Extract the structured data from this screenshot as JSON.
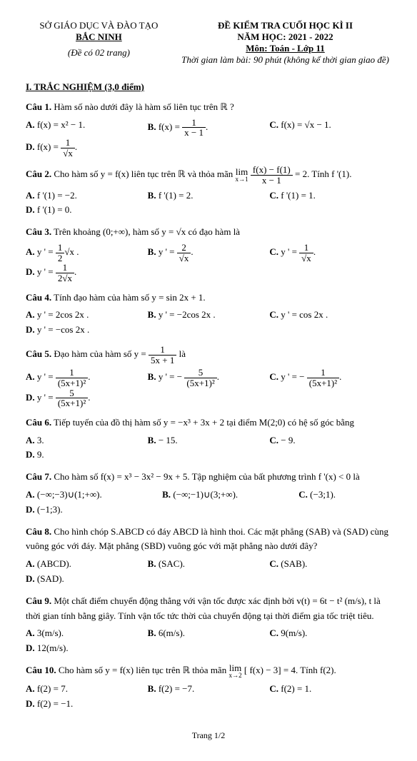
{
  "header": {
    "left_line1": "SỞ GIÁO DỤC VÀ ĐÀO TẠO",
    "left_line2": "BẮC NINH",
    "left_note": "(Đề có 02 trang)",
    "right_line1": "ĐỀ KIỂM TRA CUỐI HỌC KÌ II",
    "right_line2": "NĂM HỌC: 2021 - 2022",
    "right_line3": "Môn: Toán - Lớp 11",
    "right_note": "Thời gian làm bài: 90 phút (không kể thời gian giao đề)"
  },
  "section1": "I. TRẮC NGHIỆM (3,0 điểm)",
  "q1": {
    "label": "Câu 1.",
    "text": " Hàm số nào dưới đây là hàm số liên tục trên ℝ ?",
    "a": "f(x) = x² − 1.",
    "b_pre": "f(x) = ",
    "b_num": "1",
    "b_den": "x − 1",
    "b_suf": ".",
    "c": "f(x) = √x − 1.",
    "d_pre": "f(x) = ",
    "d_num": "1",
    "d_den": "√x",
    "d_suf": "."
  },
  "q2": {
    "label": "Câu 2.",
    "text_a": " Cho hàm số y = f(x) liên tục trên ℝ và thỏa mãn ",
    "lim": "lim",
    "limsub": "x→1",
    "num": "f(x) − f(1)",
    "den": "x − 1",
    "text_b": " = 2. Tính f '(1).",
    "a": "f '(1) = −2.",
    "b": "f '(1) = 2.",
    "c": "f '(1) = 1.",
    "d": "f '(1) = 0."
  },
  "q3": {
    "label": "Câu 3.",
    "text": " Trên khoảng (0;+∞), hàm số y = √x có đạo hàm là",
    "a_pre": "y ' = ",
    "a_num": "1",
    "a_den": "2",
    "a_suf": "√x .",
    "b_pre": "y ' = ",
    "b_num": "2",
    "b_den": "√x",
    "b_suf": ".",
    "c_pre": "y ' = ",
    "c_num": "1",
    "c_den": "√x",
    "c_suf": ".",
    "d_pre": "y ' = ",
    "d_num": "1",
    "d_den": "2√x",
    "d_suf": "."
  },
  "q4": {
    "label": "Câu 4.",
    "text": " Tính đạo hàm của hàm số y = sin 2x + 1.",
    "a": "y ' = 2cos 2x .",
    "b": "y ' = −2cos 2x .",
    "c": "y ' = cos 2x    .",
    "d": "y ' = −cos 2x ."
  },
  "q5": {
    "label": "Câu 5.",
    "text_a": " Đạo hàm của hàm số y = ",
    "t_num": "1",
    "t_den": "5x + 1",
    "text_b": " là",
    "a_pre": "y ' = ",
    "a_num": "1",
    "a_den": "(5x+1)²",
    "a_suf": ".",
    "b_pre": "y ' = − ",
    "b_num": "5",
    "b_den": "(5x+1)²",
    "b_suf": ".",
    "c_pre": "y ' = − ",
    "c_num": "1",
    "c_den": "(5x+1)²",
    "c_suf": ".",
    "d_pre": "y ' = ",
    "d_num": "5",
    "d_den": "(5x+1)²",
    "d_suf": "."
  },
  "q6": {
    "label": "Câu 6.",
    "text": " Tiếp tuyến của đồ thị hàm số y = −x³ + 3x + 2 tại điểm M(2;0) có hệ số góc bằng",
    "a": "3.",
    "b": "− 15.",
    "c": "− 9.",
    "d": "9."
  },
  "q7": {
    "label": "Câu 7.",
    "text": " Cho hàm số f(x) = x³ − 3x² − 9x + 5. Tập nghiệm của bất phương trình f '(x) < 0 là",
    "a": "(−∞;−3)∪(1;+∞).",
    "b": "(−∞;−1)∪(3;+∞).",
    "c": "(−3;1).",
    "d": "(−1;3)."
  },
  "q8": {
    "label": "Câu 8.",
    "text": " Cho hình chóp S.ABCD có đáy ABCD là hình thoi. Các mặt phẳng (SAB) và (SAD) cùng vuông góc với đáy. Mặt phẳng (SBD) vuông góc với mặt phẳng nào dưới đây?",
    "a": "(ABCD).",
    "b": "(SAC).",
    "c": "(SAB).",
    "d": "(SAD)."
  },
  "q9": {
    "label": "Câu 9.",
    "text": " Một chất điểm chuyển động thẳng với vận tốc được xác định bởi v(t) = 6t − t² (m/s), t là thời gian tính bằng giây. Tính vận tốc tức thời của chuyển động tại thời điểm gia tốc triệt tiêu.",
    "a": "3(m/s).",
    "b": "6(m/s).",
    "c": "9(m/s).",
    "d": "12(m/s)."
  },
  "q10": {
    "label": "Câu 10.",
    "text_a": " Cho hàm số y = f(x) liên tục trên ℝ thỏa mãn ",
    "lim": "lim",
    "limsub": "x→2",
    "text_b": "[ f(x) − 3] = 4. Tính f(2).",
    "a": "f(2) = 7.",
    "b": "f(2) = −7.",
    "c": "f(2) = 1.",
    "d": "f(2) = −1."
  },
  "footer": "Trang 1/2"
}
